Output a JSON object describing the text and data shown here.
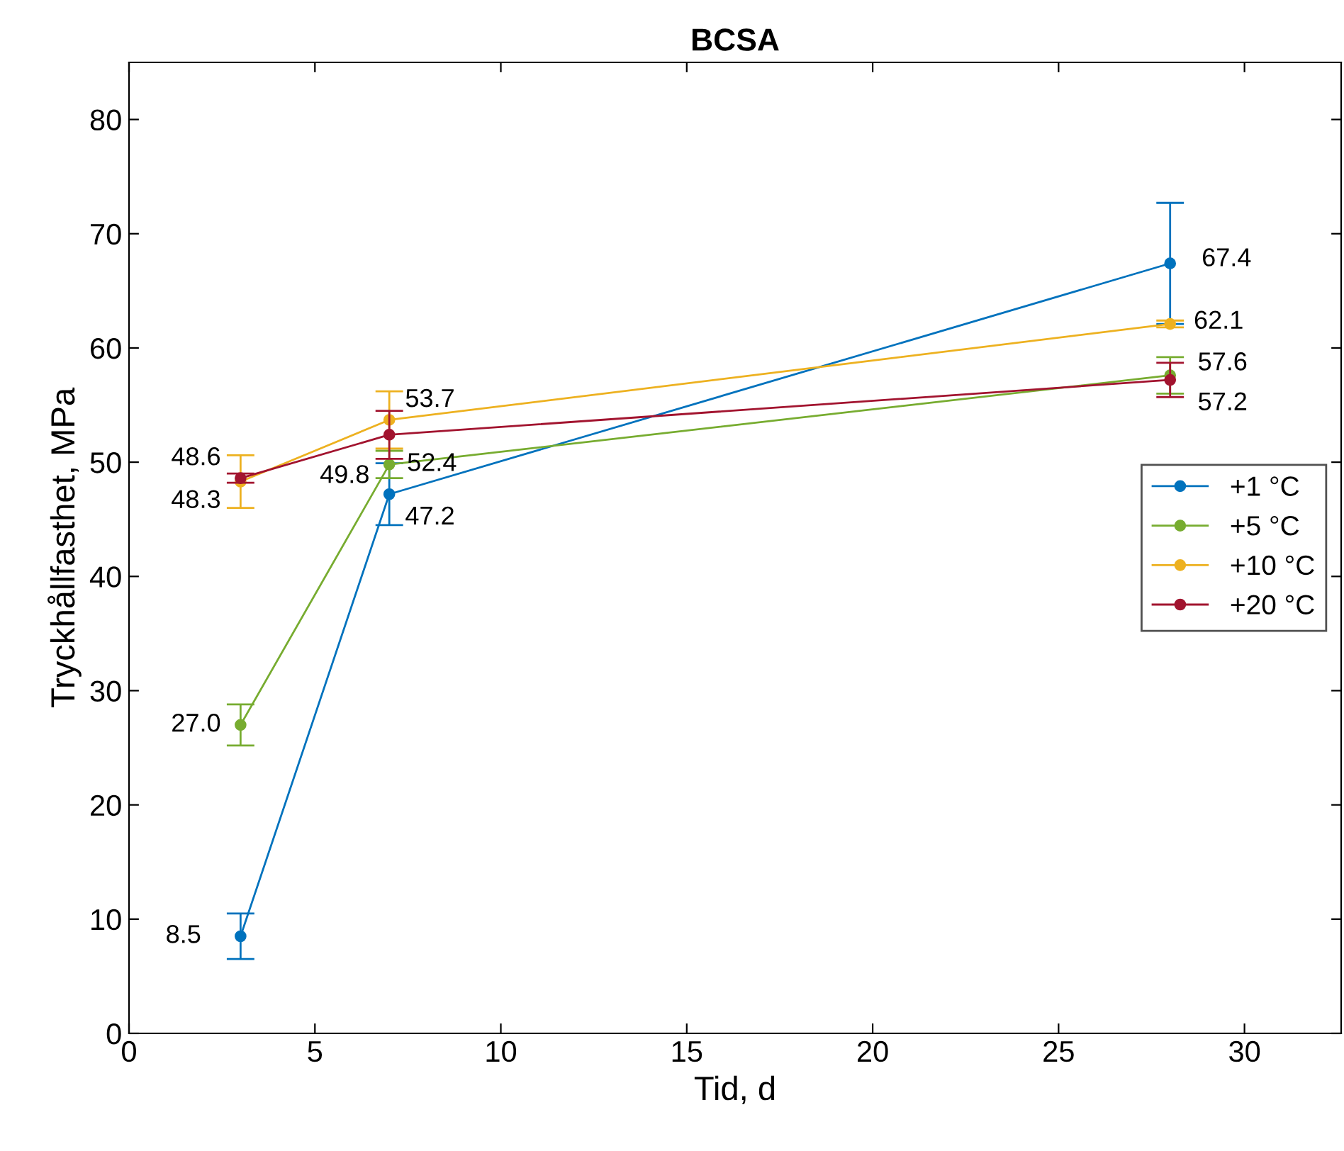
{
  "chart_data": {
    "type": "line",
    "title": "BCSA",
    "xlabel": "Tid, d",
    "ylabel": "Tryckhållfasthet, MPa",
    "x": [
      3,
      7,
      28
    ],
    "series": [
      {
        "name": "+1 °C",
        "color": "#0072bd",
        "values": [
          8.5,
          47.2,
          67.4
        ],
        "errors": [
          2.0,
          2.7,
          5.3
        ],
        "value_labels": [
          "8.5",
          "47.2",
          "67.4"
        ]
      },
      {
        "name": "+5 °C",
        "color": "#77ac30",
        "values": [
          27.0,
          49.8,
          57.6
        ],
        "errors": [
          1.8,
          1.2,
          1.6
        ],
        "value_labels": [
          "27.0",
          "49.8",
          "57.6"
        ]
      },
      {
        "name": "+10 °C",
        "color": "#edb120",
        "values": [
          48.3,
          53.7,
          62.1
        ],
        "errors": [
          2.3,
          2.5,
          0.3
        ],
        "value_labels": [
          "48.3",
          "53.7",
          "62.1"
        ]
      },
      {
        "name": "+20 °C",
        "color": "#a2142f",
        "values": [
          48.6,
          52.4,
          57.2
        ],
        "errors": [
          0.4,
          2.1,
          1.5
        ],
        "value_labels": [
          "48.6",
          "52.4",
          "57.2"
        ]
      }
    ],
    "xlim": [
      0,
      32.6
    ],
    "xticks": [
      0,
      5,
      10,
      15,
      20,
      25,
      30
    ],
    "ylim": [
      0,
      85
    ],
    "yticks": [
      0,
      10,
      20,
      30,
      40,
      50,
      60,
      70,
      80
    ],
    "legend": "right",
    "grid": false,
    "marker": "circle",
    "line_style": "solid"
  }
}
